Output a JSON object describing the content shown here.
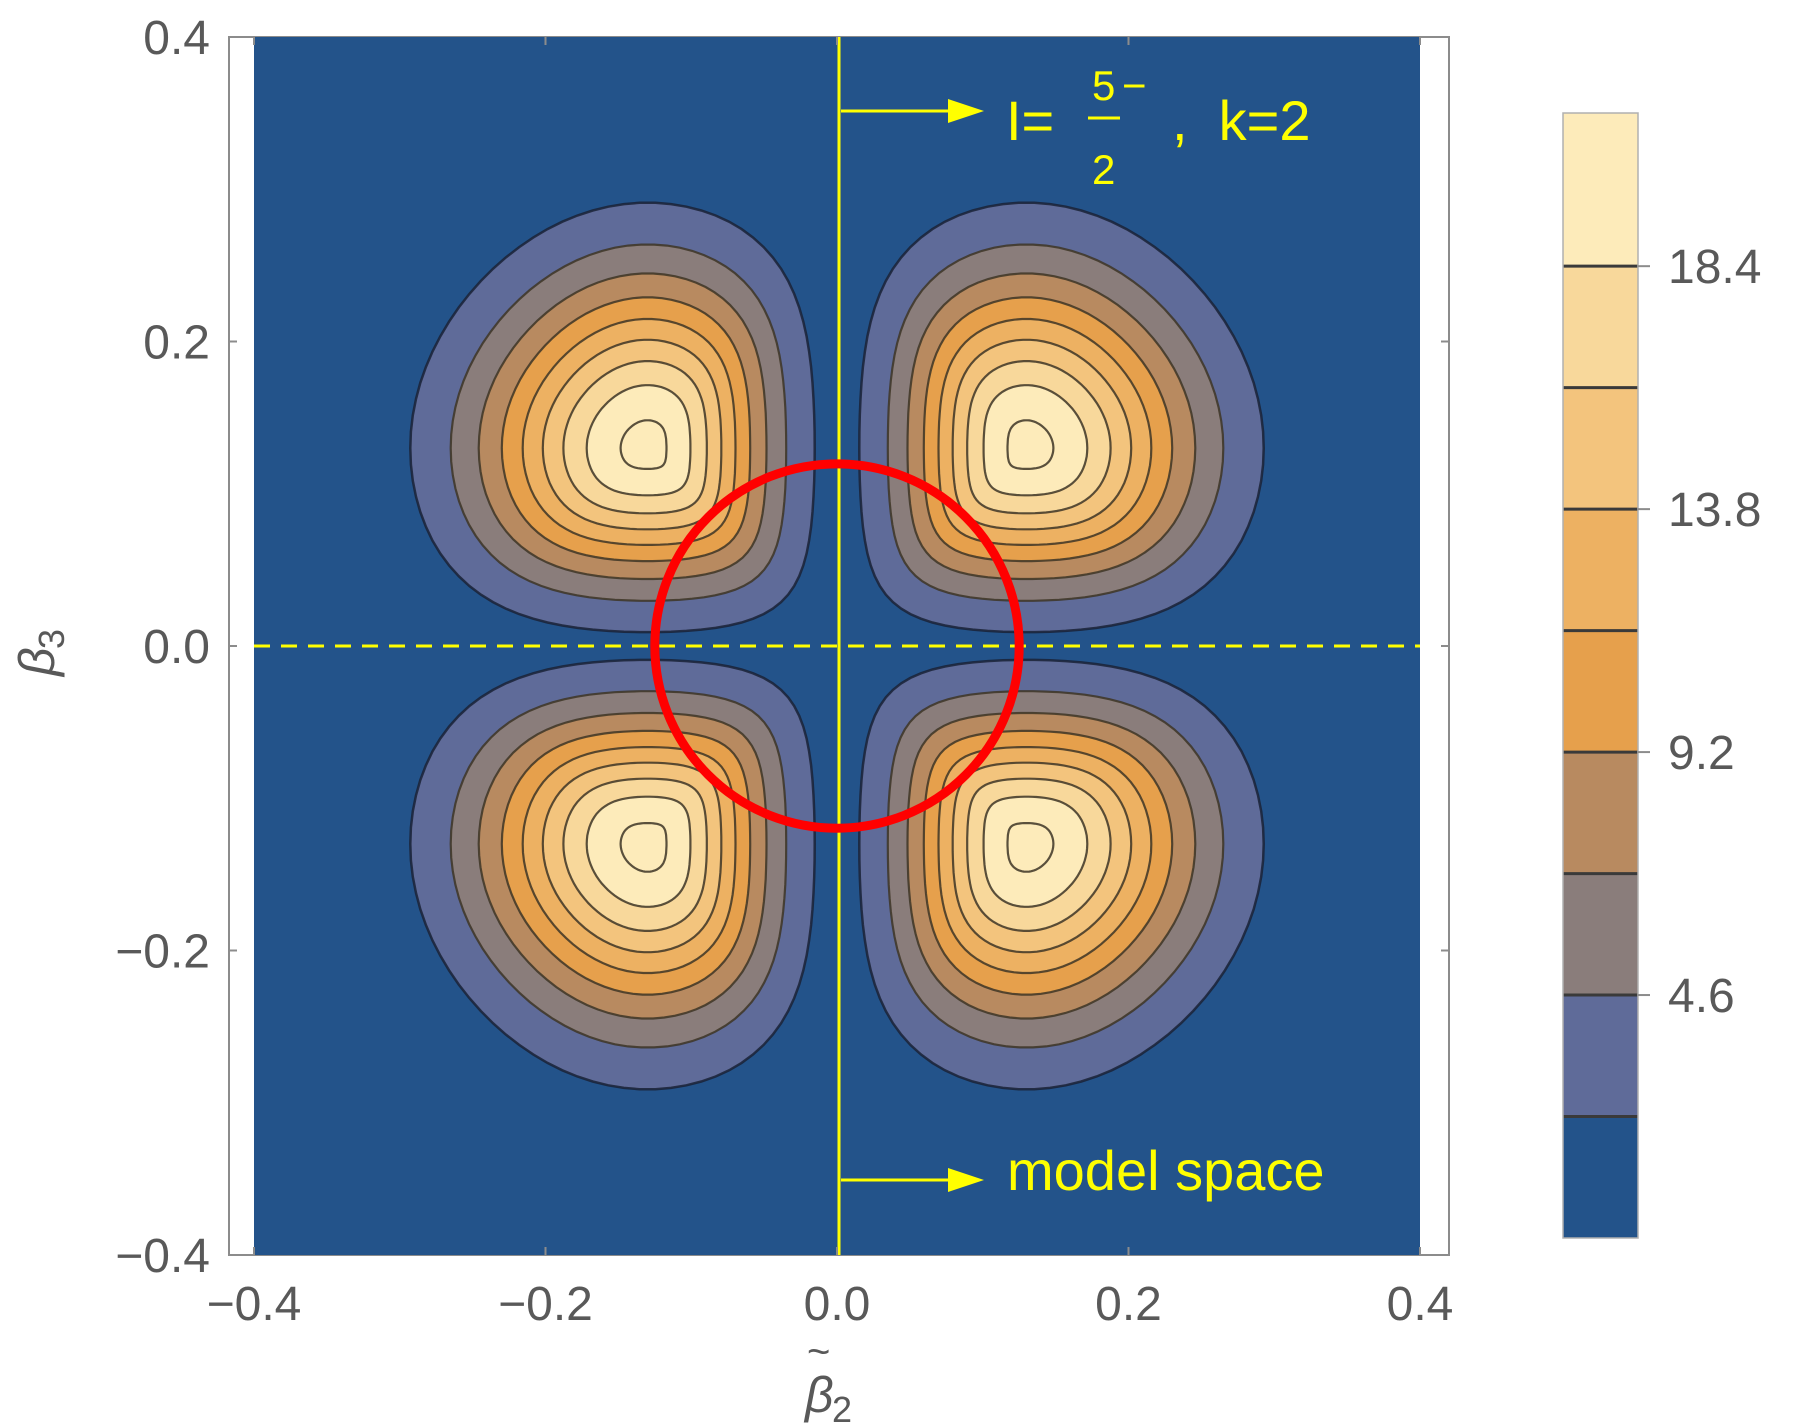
{
  "chart_data": {
    "type": "contour",
    "xlabel_symbol": "β",
    "xlabel_subscript": "2",
    "ylabel_symbol": "β",
    "ylabel_subscript": "3",
    "xlim": [
      -0.4,
      0.4
    ],
    "ylim": [
      -0.4,
      0.4
    ],
    "x_ticks": [
      {
        "value": -0.4,
        "label": "−0.4"
      },
      {
        "value": -0.2,
        "label": "−0.2"
      },
      {
        "value": 0.0,
        "label": "0.0"
      },
      {
        "value": 0.2,
        "label": "0.2"
      },
      {
        "value": 0.4,
        "label": "0.4"
      }
    ],
    "y_ticks": [
      {
        "value": -0.4,
        "label": "−0.4"
      },
      {
        "value": -0.2,
        "label": "−0.2"
      },
      {
        "value": 0.0,
        "label": "0.0"
      },
      {
        "value": 0.2,
        "label": "0.2"
      },
      {
        "value": 0.4,
        "label": "0.4"
      }
    ],
    "peaks": [
      {
        "x": -0.13,
        "y": 0.13
      },
      {
        "x": 0.13,
        "y": 0.13
      },
      {
        "x": -0.13,
        "y": -0.13
      },
      {
        "x": 0.13,
        "y": -0.13
      }
    ],
    "peak_value": 21.3,
    "contour_levels": [
      2.3,
      4.6,
      6.9,
      9.2,
      11.5,
      13.8,
      16.1,
      18.4,
      20.7
    ],
    "colorbar": {
      "range": [
        0,
        21.3
      ],
      "tick_labels": [
        {
          "value": 4.6,
          "label": "4.6"
        },
        {
          "value": 9.2,
          "label": "9.2"
        },
        {
          "value": 13.8,
          "label": "13.8"
        },
        {
          "value": 18.4,
          "label": "18.4"
        }
      ],
      "colors": [
        "#23538a",
        "#5f6b99",
        "#8a7d7b",
        "#b88a60",
        "#e6a04c",
        "#edb162",
        "#f3c47d",
        "#f8d89b",
        "#fdebba"
      ]
    },
    "annotations": {
      "state_label_prefix": "I=",
      "state_numerator": "5",
      "state_parity": "−",
      "state_denominator": "2",
      "state_k": ",  k=2",
      "model_space_label": "model space",
      "circle_radius": 0.125
    },
    "reference_lines": {
      "vertical_x": 0.0,
      "horizontal_dashed_y": 0.0
    },
    "line_colors": {
      "annotation": "#ffff00",
      "circle": "#ff0000",
      "background": "#23538a"
    }
  }
}
